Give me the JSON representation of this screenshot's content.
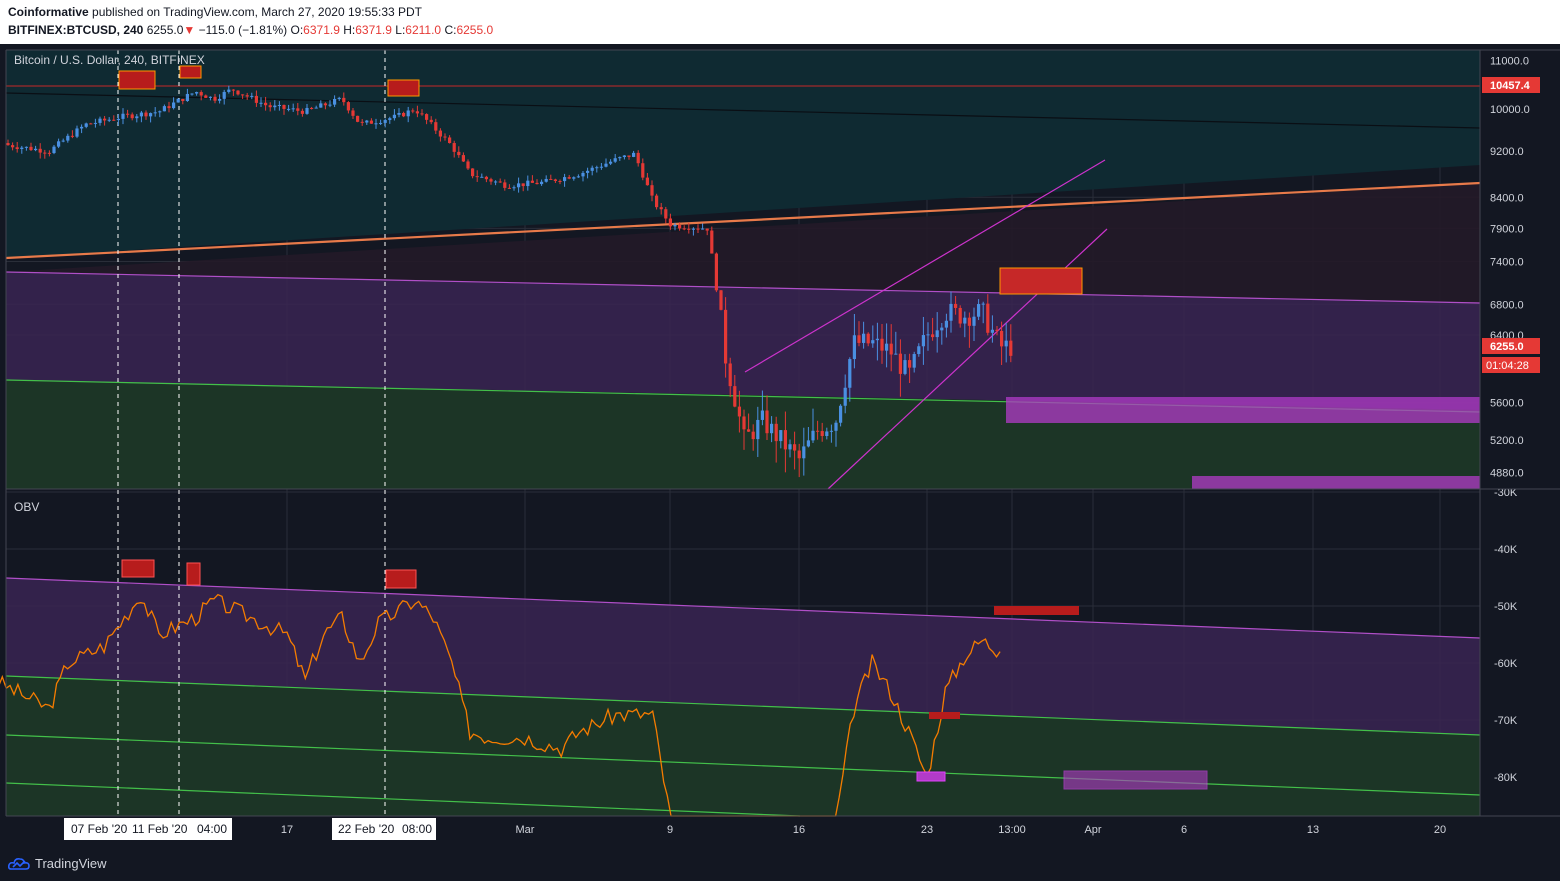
{
  "header": {
    "publisher": "Coinformative",
    "published_text": " published on TradingView.com, March 27, 2020 19:55:33 PDT",
    "symbol": "BITFINEX:BTCUSD, 240",
    "last": "6255.0",
    "change_arrow": "▼",
    "change": "−115.0 (−1.81%)",
    "o_label": "O:",
    "o": "6371.9",
    "h_label": "H:",
    "h": "6371.9",
    "l_label": "L:",
    "l": "6211.0",
    "c_label": "C:",
    "c": "6255.0"
  },
  "footer": {
    "brand": "TradingView"
  },
  "colors": {
    "up": "#4a90e2",
    "down": "#e53935",
    "obv": "#f57c00",
    "purple_zone": "#3a2452",
    "green_zone": "#1c3526",
    "dark_zone": "#0f2a32",
    "resistance_line": "#e87a4a",
    "price_badge": "#e53935"
  },
  "chart_data": [
    {
      "type": "candlestick",
      "title": "Bitcoin / U.S. Dollar, 240, BITFINEX",
      "scale": "log",
      "ylim": [
        4700,
        11400
      ],
      "y_ticks": [
        "11000.0",
        "10000.0",
        "9200.0",
        "8400.0",
        "7900.0",
        "7400.0",
        "6800.0",
        "6400.0",
        "5600.0",
        "5200.0",
        "4880.0"
      ],
      "last_price": "6255.0",
      "countdown": "01:04:28",
      "level_label": "10457.4",
      "approx_closes": [
        [
          "2020-02-01",
          9350
        ],
        [
          "2020-02-04",
          9200
        ],
        [
          "2020-02-06",
          9700
        ],
        [
          "2020-02-08",
          9850
        ],
        [
          "2020-02-10",
          9950
        ],
        [
          "2020-02-12",
          10350
        ],
        [
          "2020-02-13",
          10200
        ],
        [
          "2020-02-14",
          10400
        ],
        [
          "2020-02-16",
          10050
        ],
        [
          "2020-02-18",
          9950
        ],
        [
          "2020-02-20",
          10200
        ],
        [
          "2020-02-21",
          9700
        ],
        [
          "2020-02-23",
          9850
        ],
        [
          "2020-02-24",
          10000
        ],
        [
          "2020-02-26",
          9300
        ],
        [
          "2020-02-27",
          8800
        ],
        [
          "2020-02-29",
          8600
        ],
        [
          "2020-03-02",
          8650
        ],
        [
          "2020-03-04",
          8800
        ],
        [
          "2020-03-06",
          9050
        ],
        [
          "2020-03-07",
          9150
        ],
        [
          "2020-03-08",
          8350
        ],
        [
          "2020-03-09",
          7950
        ],
        [
          "2020-03-11",
          7900
        ],
        [
          "2020-03-12",
          6100
        ],
        [
          "2020-03-13",
          5200
        ],
        [
          "2020-03-14",
          5400
        ],
        [
          "2020-03-16",
          5000
        ],
        [
          "2020-03-17",
          5300
        ],
        [
          "2020-03-18",
          5400
        ],
        [
          "2020-03-19",
          6300
        ],
        [
          "2020-03-20",
          6300
        ],
        [
          "2020-03-21",
          6200
        ],
        [
          "2020-03-22",
          5900
        ],
        [
          "2020-03-23",
          6400
        ],
        [
          "2020-03-24",
          6700
        ],
        [
          "2020-03-25",
          6650
        ],
        [
          "2020-03-26",
          6700
        ],
        [
          "2020-03-27",
          6255
        ]
      ]
    },
    {
      "type": "line",
      "title": "OBV",
      "ylim": [
        -88000,
        -30000
      ],
      "y_ticks": [
        "-30K",
        "-40K",
        "-50K",
        "-60K",
        "-70K",
        "-80K"
      ],
      "series": [
        {
          "name": "OBV",
          "points": [
            [
              "2020-02-01",
              -63000
            ],
            [
              "2020-02-04",
              -68000
            ],
            [
              "2020-02-05",
              -60000
            ],
            [
              "2020-02-07",
              -57000
            ],
            [
              "2020-02-09",
              -48000
            ],
            [
              "2020-02-10",
              -55000
            ],
            [
              "2020-02-12",
              -52000
            ],
            [
              "2020-02-13",
              -49000
            ],
            [
              "2020-02-15",
              -52000
            ],
            [
              "2020-02-17",
              -55000
            ],
            [
              "2020-02-18",
              -63000
            ],
            [
              "2020-02-19",
              -55000
            ],
            [
              "2020-02-20",
              -52000
            ],
            [
              "2020-02-21",
              -60000
            ],
            [
              "2020-02-22",
              -53000
            ],
            [
              "2020-02-24",
              -49000
            ],
            [
              "2020-02-25",
              -52000
            ],
            [
              "2020-02-26",
              -60000
            ],
            [
              "2020-02-27",
              -72000
            ],
            [
              "2020-02-28",
              -73000
            ],
            [
              "2020-03-01",
              -73000
            ],
            [
              "2020-03-03",
              -75000
            ],
            [
              "2020-03-04",
              -72000
            ],
            [
              "2020-03-06",
              -69000
            ],
            [
              "2020-03-08",
              -69000
            ],
            [
              "2020-03-09",
              -88000
            ],
            [
              "2020-03-18",
              -88000
            ],
            [
              "2020-03-19",
              -68000
            ],
            [
              "2020-03-20",
              -60000
            ],
            [
              "2020-03-21",
              -65000
            ],
            [
              "2020-03-22",
              -72000
            ],
            [
              "2020-03-23",
              -80000
            ],
            [
              "2020-03-24",
              -65000
            ],
            [
              "2020-03-25",
              -59000
            ],
            [
              "2020-03-26",
              -56000
            ],
            [
              "2020-03-27",
              -58000
            ]
          ]
        }
      ]
    }
  ],
  "x_axis": {
    "labels": [
      "17",
      "Mar",
      "9",
      "16",
      "23",
      "13:00",
      "Apr",
      "6",
      "13",
      "20"
    ],
    "crosshair_labels": [
      "07 Feb '20",
      "11 Feb '20",
      "04:00",
      "22 Feb '20",
      "08:00"
    ]
  }
}
